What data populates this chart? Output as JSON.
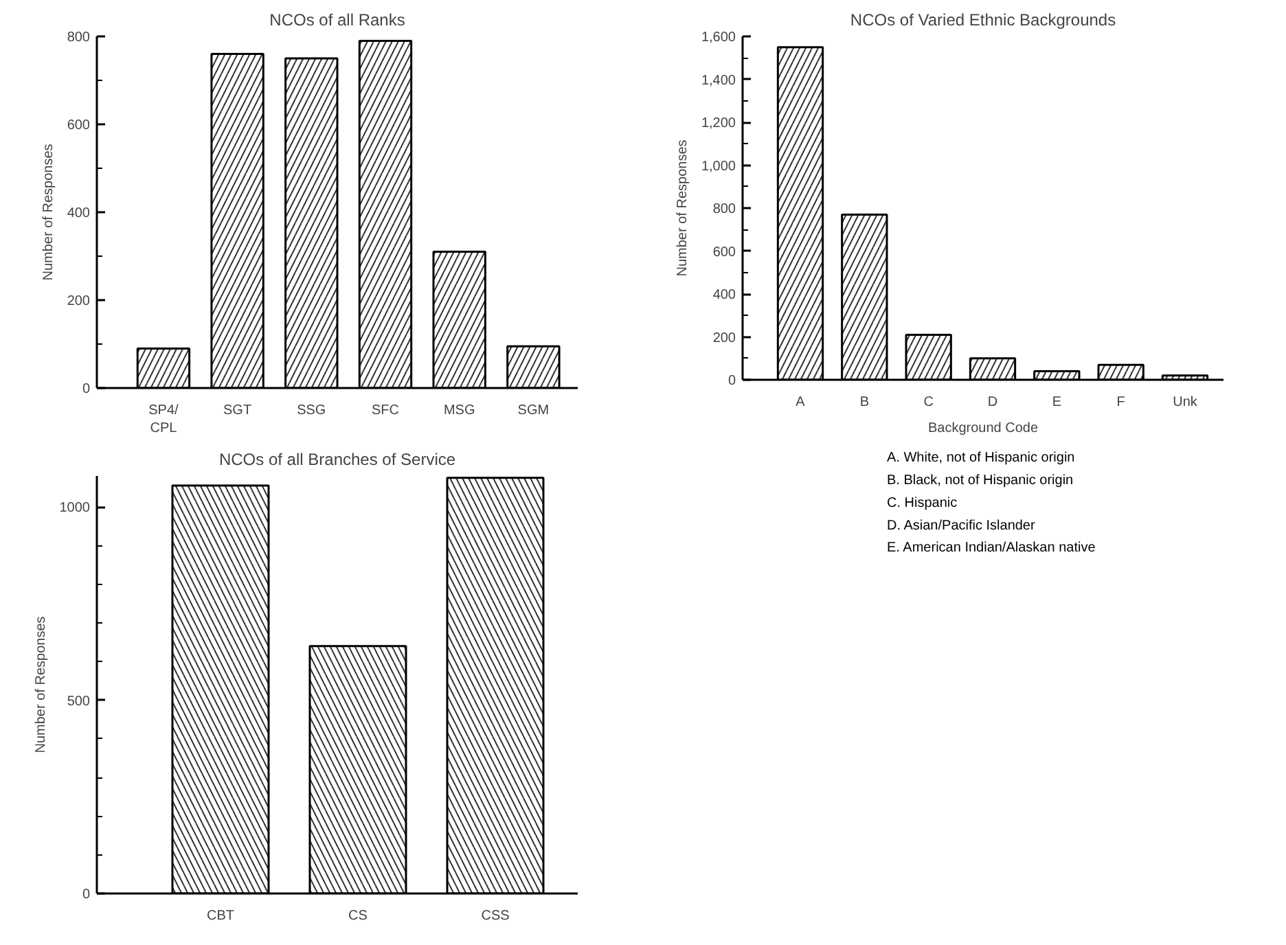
{
  "chart_data": [
    {
      "type": "bar",
      "title": "NCOs of all Ranks",
      "ylabel": "Number of Responses",
      "categories": [
        "SP4/\nCPL",
        "SGT",
        "SSG",
        "SFC",
        "MSG",
        "SGM"
      ],
      "values": [
        90,
        760,
        750,
        790,
        310,
        95
      ],
      "color": "#ffffff",
      "ylim": [
        0,
        800
      ],
      "yticks": [
        0,
        {
          "value": 100,
          "label": null
        },
        200,
        {
          "value": 300,
          "label": null
        },
        400,
        {
          "value": 500,
          "label": null
        },
        600,
        {
          "value": 700,
          "label": null
        },
        800
      ]
    },
    {
      "type": "bar",
      "title": "NCOs of Varied Ethnic Backgrounds",
      "ylabel": "Number of Responses",
      "xlabel": "Background Code",
      "categories": [
        "A",
        "B",
        "C",
        "D",
        "E",
        "F",
        "Unk"
      ],
      "values": [
        1550,
        770,
        210,
        100,
        40,
        70,
        20
      ],
      "color": "#ffffff",
      "ylim": [
        0,
        1600
      ],
      "yticks": [
        0,
        {
          "value": 100,
          "label": null
        },
        200,
        {
          "value": 300,
          "label": null
        },
        400,
        {
          "value": 500,
          "label": null
        },
        600,
        {
          "value": 700,
          "label": null
        },
        800,
        {
          "value": 900,
          "label": null
        },
        {
          "value": 1000,
          "label": "1,000"
        },
        {
          "value": 1100,
          "label": null
        },
        {
          "value": 1200,
          "label": "1,200"
        },
        {
          "value": 1300,
          "label": null
        },
        {
          "value": 1400,
          "label": "1,400"
        },
        {
          "value": 1500,
          "label": null
        },
        {
          "value": 1600,
          "label": "1,600"
        }
      ],
      "annotations": [
        "A.  White, not of Hispanic origin",
        "B.  Black, not of Hispanic origin",
        "C.  Hispanic",
        "D.  Asian/Pacific Islander",
        "E.  American Indian/Alaskan native"
      ]
    },
    {
      "type": "bar",
      "title": "NCOs of all Branches of Service",
      "ylabel": "Number of Responses",
      "categories": [
        "CBT",
        "CS",
        "CSS"
      ],
      "values": [
        1055,
        640,
        1075
      ],
      "color": "#ffffff",
      "ylim": [
        0,
        1080
      ],
      "yticks": [
        0,
        {
          "value": 100,
          "label": null
        },
        {
          "value": 200,
          "label": null
        },
        {
          "value": 300,
          "label": null
        },
        {
          "value": 400,
          "label": null
        },
        500,
        {
          "value": 600,
          "label": null
        },
        {
          "value": 700,
          "label": null
        },
        {
          "value": 800,
          "label": null
        },
        {
          "value": 900,
          "label": null
        },
        1000
      ]
    }
  ]
}
